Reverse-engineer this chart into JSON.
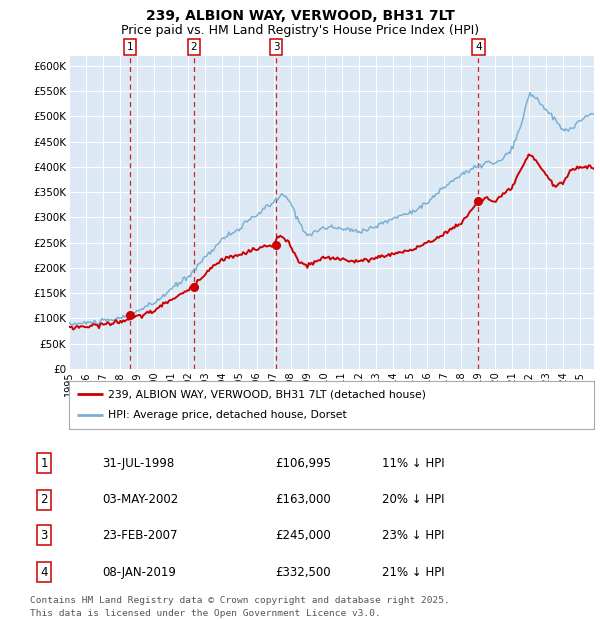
{
  "title": "239, ALBION WAY, VERWOOD, BH31 7LT",
  "subtitle": "Price paid vs. HM Land Registry's House Price Index (HPI)",
  "ylabel_ticks": [
    "£0",
    "£50K",
    "£100K",
    "£150K",
    "£200K",
    "£250K",
    "£300K",
    "£350K",
    "£400K",
    "£450K",
    "£500K",
    "£550K",
    "£600K"
  ],
  "ytick_values": [
    0,
    50000,
    100000,
    150000,
    200000,
    250000,
    300000,
    350000,
    400000,
    450000,
    500000,
    550000,
    600000
  ],
  "ylim": [
    0,
    620000
  ],
  "xlim_start": 1995.0,
  "xlim_end": 2025.8,
  "plot_bg_color": "#dce9f5",
  "red_line_color": "#cc0000",
  "blue_line_color": "#7bafd4",
  "marker_color": "#cc0000",
  "vline_color": "#cc0000",
  "legend_label_red": "239, ALBION WAY, VERWOOD, BH31 7LT (detached house)",
  "legend_label_blue": "HPI: Average price, detached house, Dorset",
  "transactions": [
    {
      "num": 1,
      "date": 1998.58,
      "price": 106995,
      "label": "31-JUL-1998",
      "price_str": "£106,995",
      "pct": "11% ↓ HPI"
    },
    {
      "num": 2,
      "date": 2002.33,
      "price": 163000,
      "label": "03-MAY-2002",
      "price_str": "£163,000",
      "pct": "20% ↓ HPI"
    },
    {
      "num": 3,
      "date": 2007.15,
      "price": 245000,
      "label": "23-FEB-2007",
      "price_str": "£245,000",
      "pct": "23% ↓ HPI"
    },
    {
      "num": 4,
      "date": 2019.02,
      "price": 332500,
      "label": "08-JAN-2019",
      "price_str": "£332,500",
      "pct": "21% ↓ HPI"
    }
  ],
  "footer_line1": "Contains HM Land Registry data © Crown copyright and database right 2025.",
  "footer_line2": "This data is licensed under the Open Government Licence v3.0.",
  "title_fontsize": 10,
  "subtitle_fontsize": 9
}
